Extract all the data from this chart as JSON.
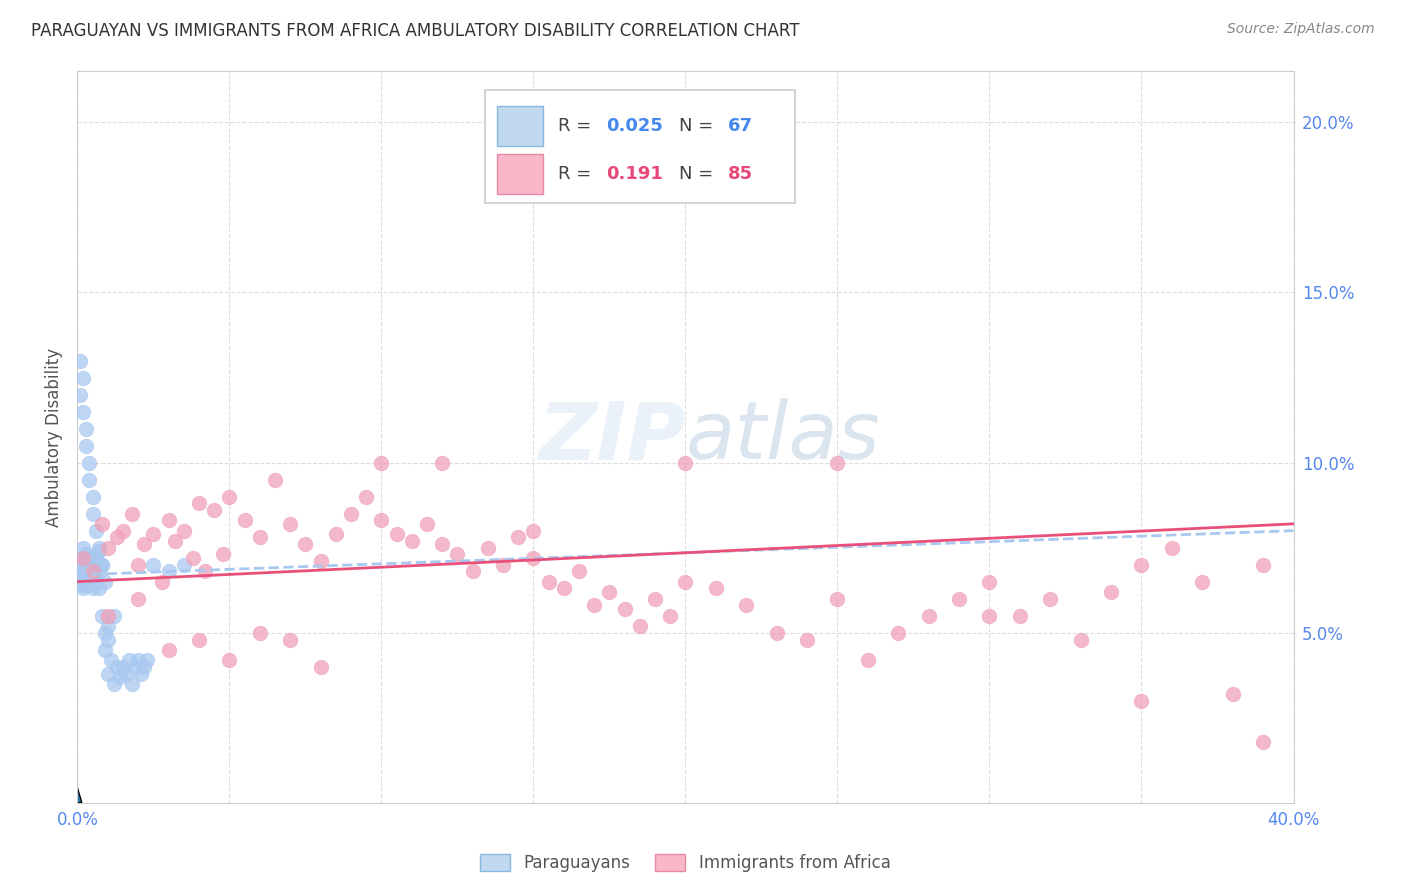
{
  "title": "PARAGUAYAN VS IMMIGRANTS FROM AFRICA AMBULATORY DISABILITY CORRELATION CHART",
  "source": "Source: ZipAtlas.com",
  "ylabel": "Ambulatory Disability",
  "series1_label": "Paraguayans",
  "series2_label": "Immigrants from Africa",
  "series1_color": "#a8c8f0",
  "series2_color": "#f0a0b8",
  "trend1_color": "#a8c8f0",
  "trend2_color": "#e8507a",
  "watermark_text": "ZIPatlas",
  "xlim": [
    0.0,
    0.4
  ],
  "ylim": [
    0.0,
    0.215
  ],
  "right_yticks": [
    0.05,
    0.1,
    0.15,
    0.2
  ],
  "right_yticklabels": [
    "5.0%",
    "10.0%",
    "15.0%",
    "20.0%"
  ],
  "xtick_labels": [
    "0.0%",
    "",
    "",
    "",
    "",
    "",
    "",
    "",
    "40.0%"
  ],
  "paraguayans_x": [
    0.001,
    0.001,
    0.001,
    0.002,
    0.002,
    0.002,
    0.002,
    0.002,
    0.002,
    0.002,
    0.003,
    0.003,
    0.003,
    0.003,
    0.003,
    0.003,
    0.004,
    0.004,
    0.004,
    0.005,
    0.005,
    0.005,
    0.005,
    0.006,
    0.006,
    0.006,
    0.007,
    0.007,
    0.007,
    0.008,
    0.008,
    0.009,
    0.009,
    0.01,
    0.01,
    0.01,
    0.011,
    0.012,
    0.012,
    0.013,
    0.014,
    0.015,
    0.016,
    0.017,
    0.018,
    0.019,
    0.02,
    0.021,
    0.022,
    0.023,
    0.001,
    0.001,
    0.002,
    0.002,
    0.003,
    0.003,
    0.004,
    0.004,
    0.005,
    0.005,
    0.006,
    0.007,
    0.008,
    0.009,
    0.025,
    0.03,
    0.035
  ],
  "paraguayans_y": [
    0.068,
    0.072,
    0.065,
    0.07,
    0.068,
    0.063,
    0.075,
    0.067,
    0.071,
    0.064,
    0.066,
    0.069,
    0.073,
    0.067,
    0.064,
    0.07,
    0.072,
    0.065,
    0.068,
    0.071,
    0.063,
    0.067,
    0.065,
    0.069,
    0.072,
    0.066,
    0.068,
    0.074,
    0.063,
    0.07,
    0.055,
    0.05,
    0.045,
    0.052,
    0.048,
    0.038,
    0.042,
    0.035,
    0.055,
    0.04,
    0.037,
    0.04,
    0.038,
    0.042,
    0.035,
    0.04,
    0.042,
    0.038,
    0.04,
    0.042,
    0.12,
    0.13,
    0.125,
    0.115,
    0.11,
    0.105,
    0.1,
    0.095,
    0.09,
    0.085,
    0.08,
    0.075,
    0.07,
    0.065,
    0.07,
    0.068,
    0.07
  ],
  "africa_x": [
    0.002,
    0.005,
    0.008,
    0.01,
    0.013,
    0.015,
    0.018,
    0.02,
    0.022,
    0.025,
    0.028,
    0.03,
    0.032,
    0.035,
    0.038,
    0.04,
    0.042,
    0.045,
    0.048,
    0.05,
    0.055,
    0.06,
    0.065,
    0.07,
    0.075,
    0.08,
    0.085,
    0.09,
    0.095,
    0.1,
    0.105,
    0.11,
    0.115,
    0.12,
    0.125,
    0.13,
    0.135,
    0.14,
    0.145,
    0.15,
    0.155,
    0.16,
    0.165,
    0.17,
    0.175,
    0.18,
    0.185,
    0.19,
    0.195,
    0.2,
    0.21,
    0.22,
    0.23,
    0.24,
    0.25,
    0.26,
    0.27,
    0.28,
    0.29,
    0.3,
    0.31,
    0.32,
    0.33,
    0.34,
    0.35,
    0.36,
    0.37,
    0.38,
    0.39,
    0.01,
    0.02,
    0.03,
    0.04,
    0.05,
    0.06,
    0.07,
    0.08,
    0.15,
    0.2,
    0.25,
    0.3,
    0.35,
    0.39,
    0.1,
    0.12
  ],
  "africa_y": [
    0.072,
    0.068,
    0.082,
    0.075,
    0.078,
    0.08,
    0.085,
    0.07,
    0.076,
    0.079,
    0.065,
    0.083,
    0.077,
    0.08,
    0.072,
    0.088,
    0.068,
    0.086,
    0.073,
    0.09,
    0.083,
    0.078,
    0.095,
    0.082,
    0.076,
    0.071,
    0.079,
    0.085,
    0.09,
    0.083,
    0.079,
    0.077,
    0.082,
    0.076,
    0.073,
    0.068,
    0.075,
    0.07,
    0.078,
    0.072,
    0.065,
    0.063,
    0.068,
    0.058,
    0.062,
    0.057,
    0.052,
    0.06,
    0.055,
    0.065,
    0.063,
    0.058,
    0.05,
    0.048,
    0.06,
    0.042,
    0.05,
    0.055,
    0.06,
    0.065,
    0.055,
    0.06,
    0.048,
    0.062,
    0.07,
    0.075,
    0.065,
    0.032,
    0.07,
    0.055,
    0.06,
    0.045,
    0.048,
    0.042,
    0.05,
    0.048,
    0.04,
    0.08,
    0.1,
    0.1,
    0.055,
    0.03,
    0.018,
    0.1,
    0.1
  ],
  "trend1_x0": 0.0,
  "trend1_y0": 0.067,
  "trend1_x1": 0.4,
  "trend1_y1": 0.08,
  "trend2_x0": 0.0,
  "trend2_y0": 0.065,
  "trend2_x1": 0.4,
  "trend2_y1": 0.082
}
